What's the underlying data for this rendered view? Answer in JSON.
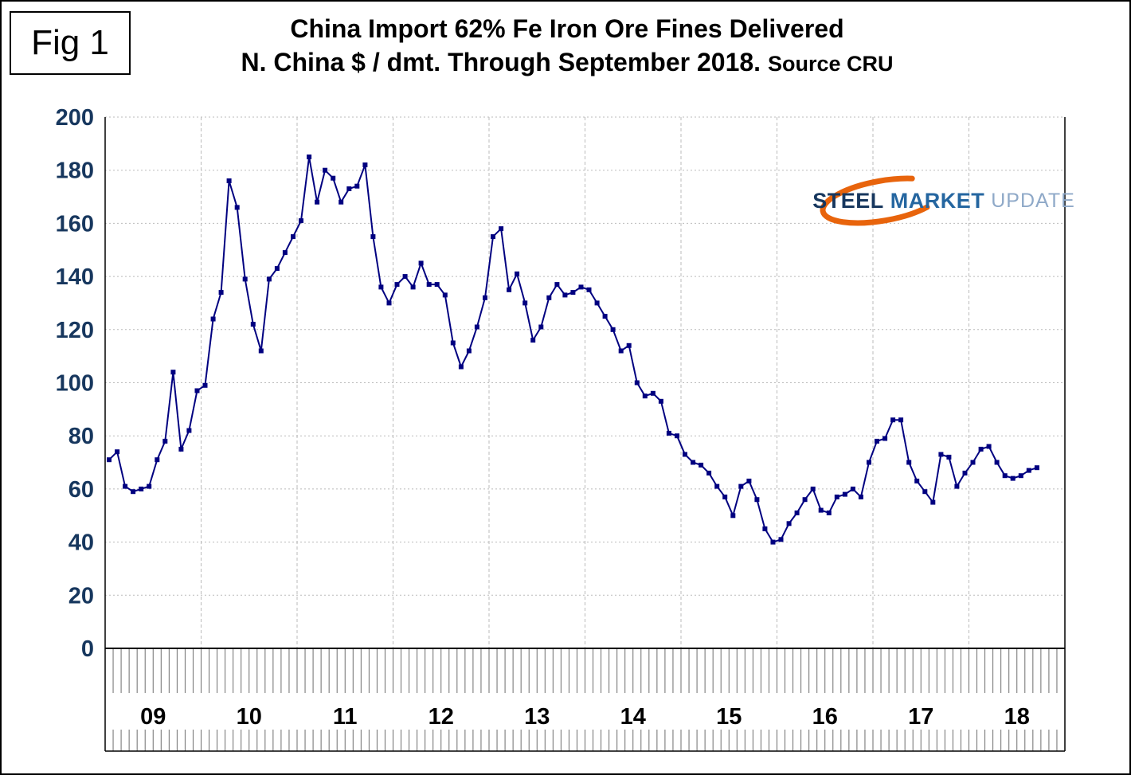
{
  "figure": {
    "label": "Fig 1"
  },
  "title": {
    "line1": "China Import 62% Fe Iron Ore Fines Delivered",
    "line2": "N. China $ / dmt. Through September 2018.",
    "source": "Source CRU"
  },
  "logo": {
    "word1": "STEEL",
    "word2": "MARKET",
    "word3": "UPDATE",
    "accent_color": "#E8640C"
  },
  "chart_data": {
    "type": "line",
    "title": "China Import 62% Fe Iron Ore Fines Delivered",
    "subtitle": "N. China $ / dmt. Through September 2018. Source CRU",
    "ylabel": "$ / dmt",
    "ylim": [
      0,
      200
    ],
    "y_ticks": [
      0,
      20,
      40,
      60,
      80,
      100,
      120,
      140,
      160,
      180,
      200
    ],
    "x_tick_labels": [
      "09",
      "10",
      "11",
      "12",
      "13",
      "14",
      "15",
      "16",
      "17",
      "18"
    ],
    "frequency": "monthly",
    "start": "Jan 2009",
    "end": "Sep 2018",
    "grid": "dotted",
    "legend": "none",
    "colors": {
      "series": "#000080",
      "y_labels": "#17375E",
      "x_labels": "#000000",
      "grid": "#BBBBBB",
      "frame": "#000000",
      "ticks": "#6E6E6E"
    },
    "series": [
      {
        "name": "China import 62% Fe iron ore fines, $/dmt",
        "marker": "square",
        "color": "#000080",
        "values": [
          71,
          74,
          61,
          59,
          60,
          61,
          71,
          78,
          104,
          75,
          82,
          97,
          99,
          124,
          134,
          176,
          166,
          139,
          122,
          112,
          139,
          143,
          149,
          155,
          161,
          185,
          168,
          180,
          177,
          168,
          173,
          174,
          182,
          155,
          136,
          130,
          137,
          140,
          136,
          145,
          137,
          137,
          133,
          115,
          106,
          112,
          121,
          132,
          155,
          158,
          135,
          141,
          130,
          116,
          121,
          132,
          137,
          133,
          134,
          136,
          135,
          130,
          125,
          120,
          112,
          114,
          100,
          95,
          96,
          93,
          81,
          80,
          73,
          70,
          69,
          66,
          61,
          57,
          50,
          61,
          63,
          56,
          45,
          40,
          41,
          47,
          51,
          56,
          60,
          52,
          51,
          57,
          58,
          60,
          57,
          70,
          78,
          79,
          86,
          86,
          70,
          63,
          59,
          55,
          73,
          72,
          61,
          66,
          70,
          75,
          76,
          70,
          65,
          64,
          65,
          67,
          68
        ]
      }
    ]
  }
}
